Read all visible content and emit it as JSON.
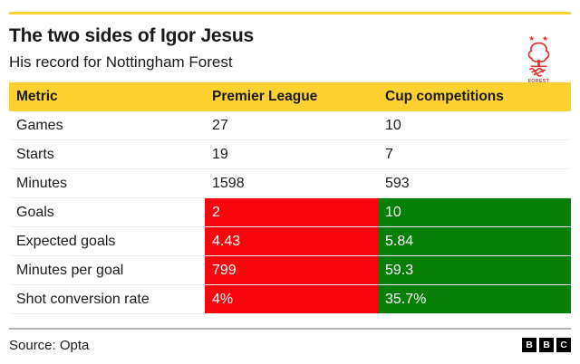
{
  "colors": {
    "accent_yellow": "#FDD230",
    "negative_red": "#F9050D",
    "positive_green": "#077F07",
    "crest_red": "#E4312B",
    "divider_gray": "#B3B3B3",
    "row_line": "#EDEDED",
    "text_dark": "#1A1A1A"
  },
  "icons": {
    "star": "★"
  },
  "header": {
    "crest_label": "FOREST"
  },
  "chart_data": {
    "type": "table",
    "title": "The two sides of Igor Jesus",
    "subtitle": "His record for Nottingham Forest",
    "columns": [
      "Metric",
      "Premier League",
      "Cup competitions"
    ],
    "rows": [
      {
        "metric": "Games",
        "premier_league": "27",
        "cup_competitions": "10",
        "highlight": false
      },
      {
        "metric": "Starts",
        "premier_league": "19",
        "cup_competitions": "7",
        "highlight": false
      },
      {
        "metric": "Minutes",
        "premier_league": "1598",
        "cup_competitions": "593",
        "highlight": false
      },
      {
        "metric": "Goals",
        "premier_league": "2",
        "cup_competitions": "10",
        "highlight": true
      },
      {
        "metric": "Expected goals",
        "premier_league": "4.43",
        "cup_competitions": "5.84",
        "highlight": true
      },
      {
        "metric": "Minutes per goal",
        "premier_league": "799",
        "cup_competitions": "59.3",
        "highlight": true
      },
      {
        "metric": "Shot conversion rate",
        "premier_league": "4%",
        "cup_competitions": "35.7%",
        "highlight": true
      }
    ],
    "highlight_colors": {
      "premier_league": "red",
      "cup_competitions": "green"
    },
    "source": "Source: Opta"
  },
  "footer": {
    "bbc_logo_letters": [
      "B",
      "B",
      "C"
    ]
  }
}
